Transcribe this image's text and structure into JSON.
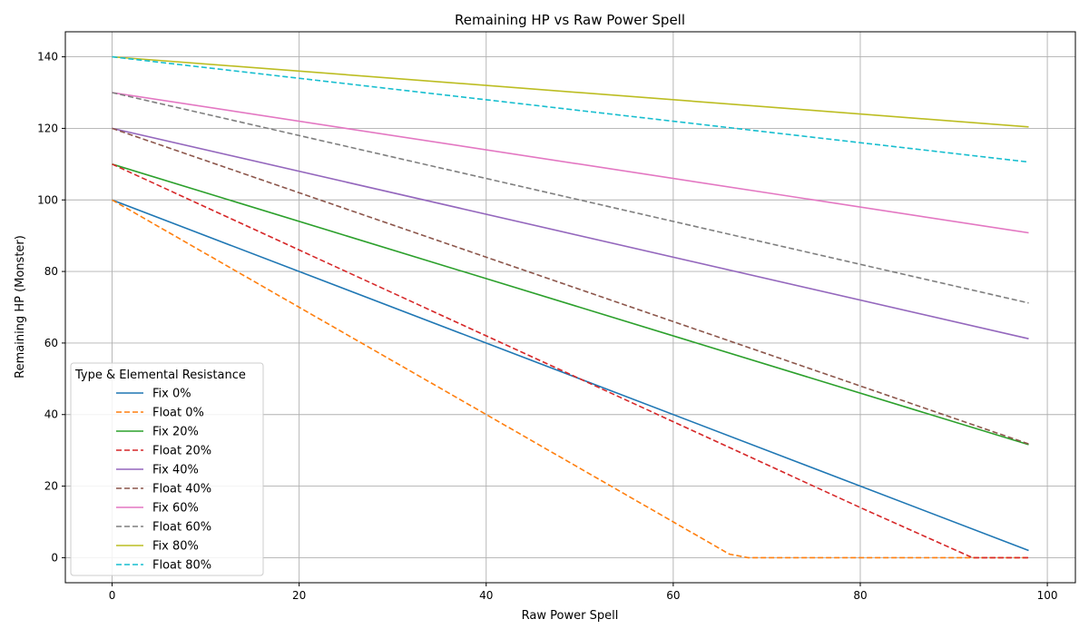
{
  "chart_data": {
    "type": "line",
    "title": "Remaining HP vs Raw Power Spell",
    "xlabel": "Raw Power Spell",
    "ylabel": "Remaining HP (Monster)",
    "xlim": [
      -5,
      103
    ],
    "ylim": [
      -7,
      147
    ],
    "xticks": [
      0,
      20,
      40,
      60,
      80,
      100
    ],
    "yticks": [
      0,
      20,
      40,
      60,
      80,
      100,
      120,
      140
    ],
    "grid": true,
    "legend": {
      "title": "Type & Elemental Resistance",
      "placement": "lower-left"
    },
    "x": [
      0,
      20,
      40,
      60,
      80,
      98
    ],
    "series": [
      {
        "name": "Fix 0%",
        "style": "solid",
        "color": "#1f77b4",
        "x": [
          0,
          98
        ],
        "y": [
          100,
          2
        ]
      },
      {
        "name": "Float 0%",
        "style": "dashed",
        "color": "#ff7f0e",
        "x": [
          0,
          20,
          40,
          60,
          66,
          68,
          98
        ],
        "y": [
          100,
          70,
          40,
          10,
          1,
          0,
          0
        ]
      },
      {
        "name": "Fix 20%",
        "style": "solid",
        "color": "#2ca02c",
        "x": [
          0,
          98
        ],
        "y": [
          110,
          31.6
        ]
      },
      {
        "name": "Float 20%",
        "style": "dashed",
        "color": "#d62728",
        "x": [
          0,
          20,
          40,
          60,
          80,
          92,
          98
        ],
        "y": [
          110,
          86,
          62,
          38,
          14,
          0,
          0
        ]
      },
      {
        "name": "Fix 40%",
        "style": "solid",
        "color": "#9467bd",
        "x": [
          0,
          98
        ],
        "y": [
          120,
          61.2
        ]
      },
      {
        "name": "Float 40%",
        "style": "dashed",
        "color": "#8c564b",
        "x": [
          0,
          98
        ],
        "y": [
          120,
          31.8
        ]
      },
      {
        "name": "Fix 60%",
        "style": "solid",
        "color": "#e377c2",
        "x": [
          0,
          98
        ],
        "y": [
          130,
          90.8
        ]
      },
      {
        "name": "Float 60%",
        "style": "dashed",
        "color": "#7f7f7f",
        "x": [
          0,
          98
        ],
        "y": [
          130,
          71.2
        ]
      },
      {
        "name": "Fix 80%",
        "style": "solid",
        "color": "#bcbd22",
        "x": [
          0,
          98
        ],
        "y": [
          140,
          120.4
        ]
      },
      {
        "name": "Float 80%",
        "style": "dashed",
        "color": "#17becf",
        "x": [
          0,
          98
        ],
        "y": [
          140,
          110.6
        ]
      }
    ]
  }
}
